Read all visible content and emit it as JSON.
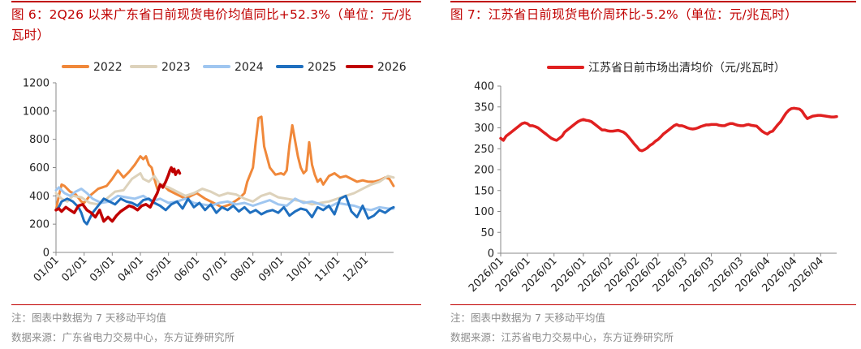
{
  "left": {
    "title": "图 6：2Q26 以来广东省日前现货电价均值同比+52.3%（单位：元/兆瓦时）",
    "note": "注：图表中数据为 7 天移动平均值",
    "source": "数据来源：广东省电力交易中心，东方证券研究所"
  },
  "right": {
    "title": "图 7：江苏省日前现货电价周环比-5.2%（单位：元/兆瓦时）",
    "note": "注：图表中数据为 7 天移动平均值",
    "source": "数据来源：江苏省电力交易中心，东方证券研究所"
  },
  "chart_data": [
    {
      "type": "line",
      "title": "",
      "xlabel": "",
      "ylabel": "",
      "ylim": [
        0,
        1200
      ],
      "x_domain": [
        0,
        12
      ],
      "yticks": [
        0,
        200,
        400,
        600,
        800,
        1000,
        1200
      ],
      "xticks": [
        "01/01",
        "02/01",
        "03/01",
        "04/01",
        "05/01",
        "06/01",
        "07/01",
        "08/01",
        "09/01",
        "10/01",
        "11/01",
        "12/01"
      ],
      "grid": false,
      "legend": "top",
      "series": [
        {
          "name": "2022",
          "color": "#f0883a",
          "x": [
            0,
            0.1,
            0.2,
            0.3,
            0.5,
            0.7,
            0.9,
            1.0,
            1.2,
            1.5,
            1.8,
            2.0,
            2.2,
            2.4,
            2.6,
            2.8,
            3.0,
            3.1,
            3.2,
            3.3,
            3.4,
            3.5,
            3.6,
            3.8,
            4.0,
            4.2,
            4.4,
            4.6,
            4.8,
            5.0,
            5.3,
            5.6,
            5.9,
            6.2,
            6.5,
            6.7,
            6.8,
            6.9,
            7.0,
            7.1,
            7.2,
            7.3,
            7.4,
            7.6,
            7.8,
            8.0,
            8.1,
            8.2,
            8.3,
            8.4,
            8.6,
            8.7,
            8.8,
            8.9,
            9.0,
            9.1,
            9.2,
            9.3,
            9.4,
            9.5,
            9.7,
            9.9,
            10.1,
            10.3,
            10.5,
            10.7,
            10.9,
            11.1,
            11.3,
            11.5,
            11.7,
            11.85,
            12.0
          ],
          "y": [
            300,
            400,
            480,
            470,
            430,
            410,
            360,
            350,
            400,
            450,
            470,
            520,
            580,
            530,
            570,
            620,
            680,
            660,
            680,
            620,
            600,
            520,
            450,
            480,
            440,
            420,
            400,
            380,
            400,
            420,
            380,
            350,
            320,
            340,
            380,
            420,
            500,
            550,
            600,
            780,
            950,
            960,
            750,
            600,
            550,
            560,
            550,
            580,
            760,
            900,
            680,
            600,
            560,
            580,
            780,
            620,
            550,
            500,
            520,
            480,
            540,
            560,
            530,
            540,
            520,
            500,
            510,
            500,
            500,
            510,
            530,
            520,
            470
          ]
        },
        {
          "name": "2023",
          "color": "#ddd2bb",
          "x": [
            0,
            0.2,
            0.4,
            0.6,
            0.9,
            1.2,
            1.5,
            1.8,
            2.1,
            2.4,
            2.7,
            3.0,
            3.1,
            3.3,
            3.5,
            3.7,
            4.0,
            4.3,
            4.6,
            4.9,
            5.2,
            5.5,
            5.8,
            6.1,
            6.4,
            6.7,
            7.0,
            7.3,
            7.6,
            7.9,
            8.2,
            8.5,
            8.8,
            9.1,
            9.4,
            9.7,
            10.0,
            10.3,
            10.6,
            10.9,
            11.2,
            11.5,
            11.8,
            12.0
          ],
          "y": [
            420,
            380,
            360,
            400,
            390,
            350,
            340,
            380,
            430,
            440,
            520,
            560,
            520,
            500,
            540,
            480,
            460,
            430,
            400,
            420,
            450,
            430,
            400,
            420,
            410,
            380,
            360,
            400,
            420,
            390,
            380,
            370,
            360,
            340,
            350,
            360,
            380,
            400,
            420,
            450,
            480,
            500,
            540,
            530
          ]
        },
        {
          "name": "2024",
          "color": "#9fc6f0",
          "x": [
            0,
            0.1,
            0.3,
            0.5,
            0.7,
            0.9,
            1.1,
            1.3,
            1.6,
            1.9,
            2.2,
            2.5,
            2.8,
            3.1,
            3.4,
            3.7,
            4.0,
            4.3,
            4.6,
            4.9,
            5.2,
            5.5,
            5.8,
            6.1,
            6.4,
            6.7,
            7.0,
            7.3,
            7.6,
            7.9,
            8.2,
            8.5,
            8.8,
            9.1,
            9.4,
            9.7,
            10.0,
            10.3,
            10.6,
            10.9,
            11.2,
            11.5,
            11.8,
            12.0
          ],
          "y": [
            440,
            460,
            420,
            400,
            430,
            450,
            420,
            380,
            350,
            360,
            400,
            390,
            380,
            400,
            360,
            380,
            350,
            360,
            380,
            350,
            340,
            330,
            350,
            360,
            340,
            350,
            330,
            350,
            370,
            340,
            330,
            380,
            350,
            360,
            340,
            320,
            350,
            340,
            330,
            310,
            300,
            320,
            310,
            310
          ]
        },
        {
          "name": "2025",
          "color": "#1f6fbf",
          "x": [
            0,
            0.1,
            0.2,
            0.4,
            0.6,
            0.8,
            0.9,
            1.0,
            1.1,
            1.3,
            1.5,
            1.7,
            1.9,
            2.1,
            2.3,
            2.5,
            2.7,
            2.9,
            3.1,
            3.3,
            3.5,
            3.7,
            3.9,
            4.1,
            4.3,
            4.5,
            4.7,
            4.9,
            5.1,
            5.3,
            5.5,
            5.7,
            5.9,
            6.1,
            6.3,
            6.5,
            6.7,
            6.9,
            7.1,
            7.3,
            7.5,
            7.7,
            7.9,
            8.1,
            8.3,
            8.5,
            8.7,
            8.9,
            9.1,
            9.3,
            9.5,
            9.7,
            9.9,
            10.1,
            10.3,
            10.5,
            10.7,
            10.9,
            11.1,
            11.3,
            11.5,
            11.7,
            11.9,
            12.0
          ],
          "y": [
            300,
            320,
            360,
            380,
            360,
            320,
            280,
            220,
            200,
            280,
            330,
            380,
            360,
            340,
            380,
            360,
            350,
            330,
            370,
            380,
            350,
            330,
            300,
            340,
            360,
            310,
            380,
            320,
            350,
            300,
            340,
            280,
            320,
            300,
            330,
            290,
            320,
            280,
            300,
            270,
            290,
            300,
            280,
            320,
            260,
            290,
            310,
            300,
            250,
            320,
            300,
            330,
            270,
            380,
            400,
            290,
            250,
            330,
            240,
            260,
            300,
            280,
            310,
            320
          ]
        },
        {
          "name": "2026",
          "color": "#c00000",
          "x": [
            0,
            0.1,
            0.2,
            0.35,
            0.5,
            0.65,
            0.8,
            0.95,
            1.1,
            1.25,
            1.4,
            1.55,
            1.7,
            1.85,
            2.0,
            2.15,
            2.3,
            2.45,
            2.6,
            2.75,
            2.9,
            3.05,
            3.2,
            3.35,
            3.5,
            3.6,
            3.7,
            3.8,
            3.9,
            4.0,
            4.05,
            4.1,
            4.15,
            4.2,
            4.25,
            4.3,
            4.35,
            4.4
          ],
          "y": [
            300,
            310,
            290,
            320,
            300,
            280,
            330,
            340,
            300,
            280,
            250,
            300,
            220,
            250,
            220,
            260,
            290,
            310,
            330,
            320,
            300,
            330,
            340,
            320,
            380,
            420,
            480,
            460,
            500,
            550,
            580,
            600,
            570,
            590,
            550,
            570,
            580,
            560
          ]
        }
      ]
    },
    {
      "type": "line",
      "title": "",
      "xlabel": "",
      "ylabel": "",
      "ylim": [
        0,
        400
      ],
      "x_domain": [
        0,
        126
      ],
      "yticks": [
        0,
        50,
        100,
        150,
        200,
        250,
        300,
        350,
        400
      ],
      "xticks": [
        "2026/01",
        "2026/01",
        "2026/01",
        "2026/01",
        "2026/02",
        "2026/02",
        "2026/02",
        "2026/03",
        "2026/03",
        "2026/03",
        "2026/04",
        "2026/04",
        "2026/04"
      ],
      "xtick_pos": [
        0,
        10,
        20,
        31,
        41,
        51,
        59,
        69,
        79,
        90,
        100,
        110,
        120
      ],
      "grid": false,
      "legend": "top",
      "series": [
        {
          "name": "江苏省日前市场出清均价（元/兆瓦时）",
          "color": "#e02020",
          "x": [
            0,
            1,
            2,
            3,
            4,
            5,
            6,
            7,
            8,
            9,
            10,
            11,
            12,
            13,
            14,
            15,
            16,
            17,
            18,
            19,
            20,
            21,
            22,
            23,
            24,
            25,
            26,
            27,
            28,
            29,
            30,
            31,
            32,
            33,
            34,
            35,
            36,
            37,
            38,
            39,
            40,
            41,
            42,
            43,
            44,
            45,
            46,
            47,
            48,
            49,
            50,
            51,
            52,
            53,
            54,
            55,
            56,
            57,
            58,
            59,
            60,
            61,
            62,
            63,
            64,
            65,
            66,
            67,
            68,
            69,
            70,
            71,
            72,
            73,
            74,
            75,
            76,
            77,
            78,
            79,
            80,
            81,
            82,
            83,
            84,
            85,
            86,
            87,
            88,
            89,
            90,
            91,
            92,
            93,
            94,
            95,
            96,
            97,
            98,
            99,
            100,
            101,
            102,
            103,
            104,
            105,
            106,
            107,
            108,
            109,
            110,
            111,
            112,
            113,
            114,
            115,
            116,
            117,
            118,
            119,
            120,
            121,
            122,
            123,
            124,
            125,
            126
          ],
          "y": [
            275,
            270,
            280,
            285,
            290,
            295,
            300,
            305,
            310,
            312,
            310,
            305,
            305,
            303,
            300,
            295,
            290,
            285,
            280,
            275,
            272,
            270,
            275,
            280,
            290,
            295,
            300,
            305,
            310,
            315,
            318,
            320,
            318,
            317,
            315,
            310,
            305,
            300,
            295,
            295,
            293,
            292,
            292,
            293,
            294,
            292,
            290,
            285,
            278,
            270,
            262,
            255,
            247,
            245,
            248,
            252,
            258,
            262,
            268,
            272,
            278,
            285,
            290,
            295,
            300,
            305,
            308,
            305,
            305,
            303,
            300,
            298,
            297,
            298,
            300,
            303,
            305,
            307,
            307,
            308,
            308,
            308,
            306,
            305,
            305,
            308,
            310,
            310,
            308,
            306,
            305,
            305,
            307,
            308,
            306,
            305,
            304,
            298,
            292,
            288,
            285,
            290,
            292,
            300,
            308,
            315,
            325,
            335,
            342,
            346,
            347,
            346,
            345,
            340,
            330,
            322,
            325,
            328,
            329,
            330,
            330,
            329,
            328,
            327,
            326,
            326,
            327
          ]
        }
      ]
    }
  ]
}
